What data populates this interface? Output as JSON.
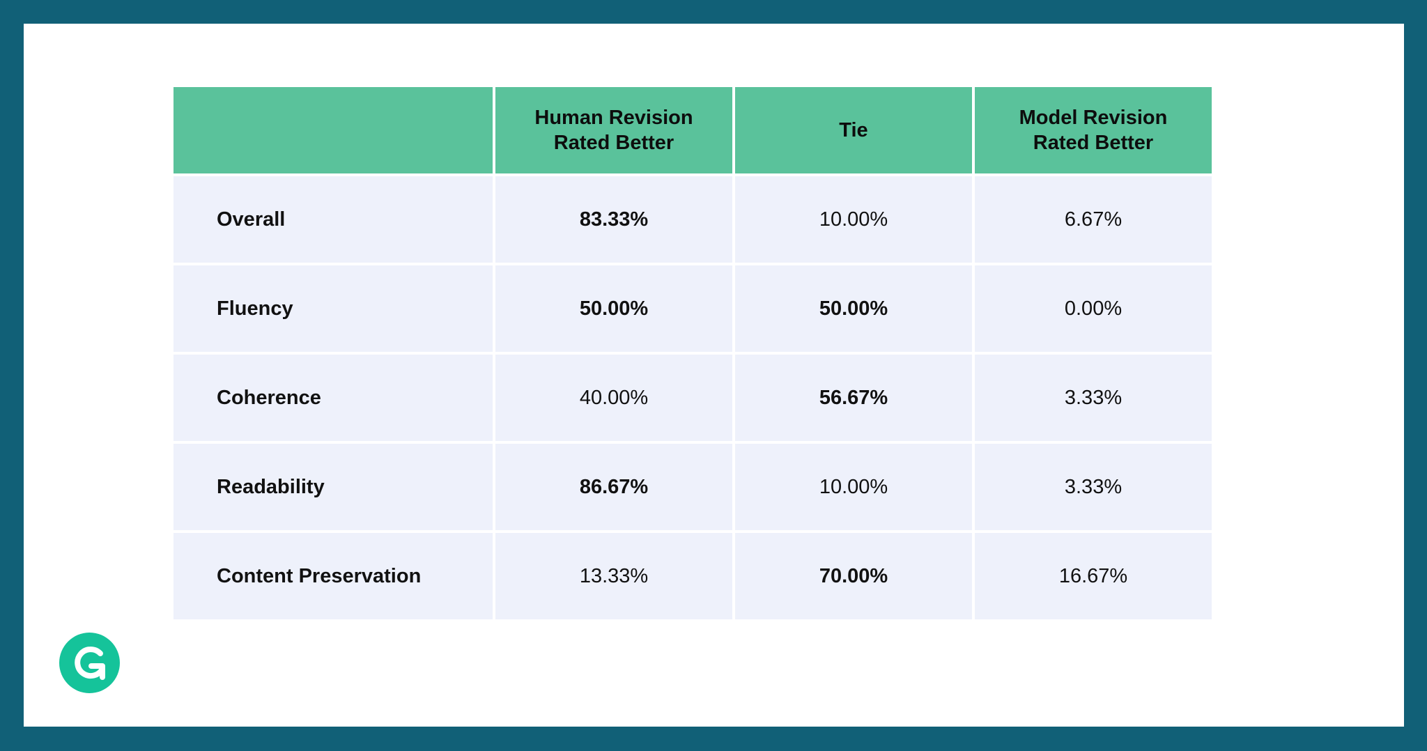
{
  "table": {
    "headers": [
      {
        "line1": "",
        "line2": ""
      },
      {
        "line1": "Human Revision",
        "line2": "Rated Better"
      },
      {
        "line1": "Tie",
        "line2": ""
      },
      {
        "line1": "Model Revision",
        "line2": "Rated Better"
      }
    ],
    "rows": [
      {
        "label": "Overall",
        "human": "83.33%",
        "tie": "10.00%",
        "model": "6.67%",
        "bold": [
          true,
          false,
          false
        ]
      },
      {
        "label": "Fluency",
        "human": "50.00%",
        "tie": "50.00%",
        "model": "0.00%",
        "bold": [
          true,
          true,
          false
        ]
      },
      {
        "label": "Coherence",
        "human": "40.00%",
        "tie": "56.67%",
        "model": "3.33%",
        "bold": [
          false,
          true,
          false
        ]
      },
      {
        "label": "Readability",
        "human": "86.67%",
        "tie": "10.00%",
        "model": "3.33%",
        "bold": [
          true,
          false,
          false
        ]
      },
      {
        "label": "Content Preservation",
        "human": "13.33%",
        "tie": "70.00%",
        "model": "16.67%",
        "bold": [
          false,
          true,
          false
        ]
      }
    ]
  },
  "logo": {
    "icon": "grammarly-g-icon"
  },
  "colors": {
    "frame": "#116077",
    "header": "#5ac29b",
    "cell": "#eef1fb",
    "logo": "#15c39a"
  }
}
